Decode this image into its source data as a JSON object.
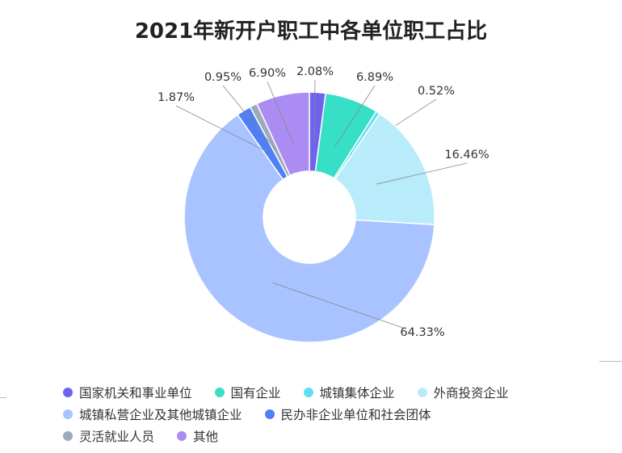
{
  "chart_data": {
    "type": "pie",
    "title": "2021年新开户职工中各单位职工占比",
    "donut": true,
    "legend_position": "bottom",
    "slices": [
      {
        "name": "国家机关和事业单位",
        "value": 2.08,
        "label": "2.08%",
        "color": "#6f63ee"
      },
      {
        "name": "国有企业",
        "value": 6.89,
        "label": "6.89%",
        "color": "#36dfc5"
      },
      {
        "name": "城镇集体企业",
        "value": 0.52,
        "label": "0.52%",
        "color": "#5fe0f0"
      },
      {
        "name": "外商投资企业",
        "value": 16.46,
        "label": "16.46%",
        "color": "#b8ecfb"
      },
      {
        "name": "城镇私营企业及其他城镇企业",
        "value": 64.33,
        "label": "64.33%",
        "color": "#a8c3ff"
      },
      {
        "name": "民办非企业单位和社会团体",
        "value": 1.87,
        "label": "1.87%",
        "color": "#4f7ff4"
      },
      {
        "name": "灵活就业人员",
        "value": 0.95,
        "label": "0.95%",
        "color": "#9ea9bc"
      },
      {
        "name": "其他",
        "value": 6.9,
        "label": "6.90%",
        "color": "#aa8cf3"
      }
    ]
  }
}
